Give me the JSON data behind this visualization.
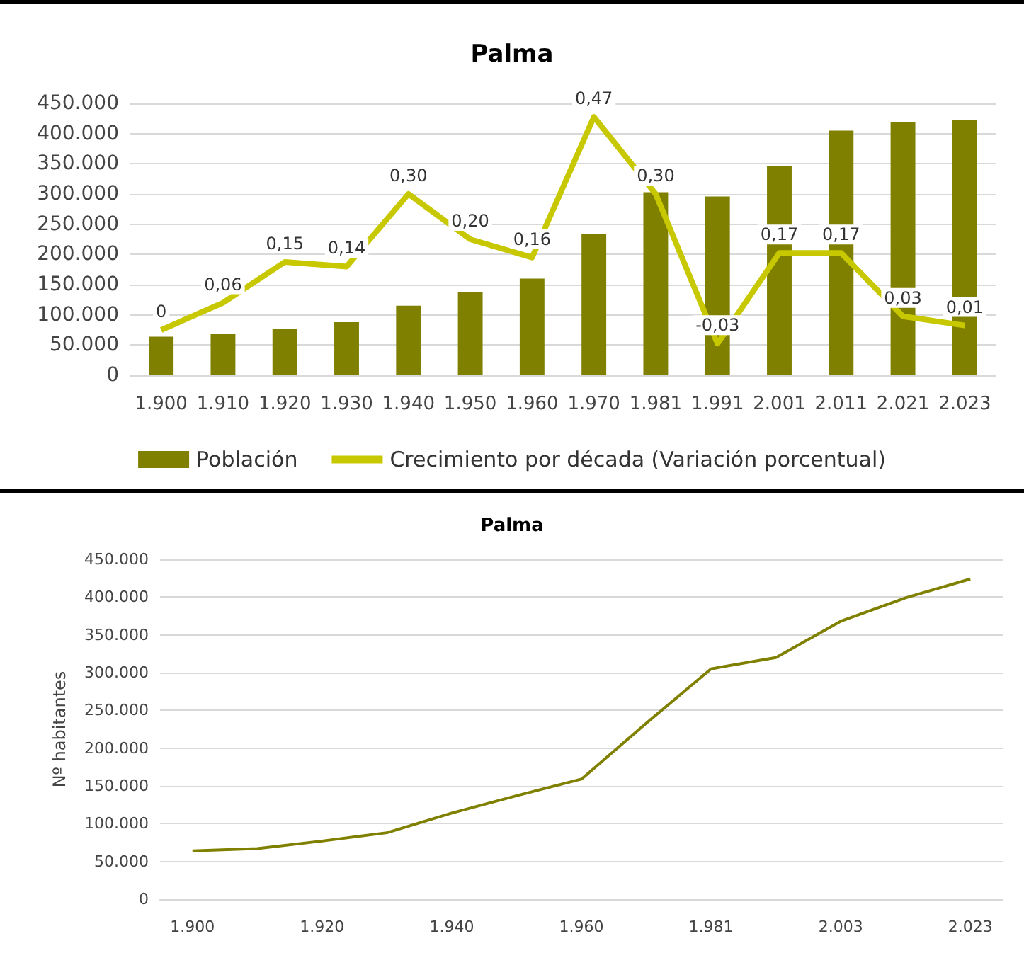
{
  "chart_data": [
    {
      "type": "bar",
      "title": "Palma",
      "categories": [
        "1.900",
        "1.910",
        "1.920",
        "1.930",
        "1.940",
        "1.950",
        "1.960",
        "1.970",
        "1.981",
        "1.991",
        "2.001",
        "2.011",
        "2.021",
        "2.023"
      ],
      "series": [
        {
          "name": "Población",
          "color": "#808000",
          "values": [
            64000,
            68000,
            77000,
            88000,
            115000,
            138000,
            160000,
            234000,
            303000,
            296000,
            347000,
            405000,
            419000,
            423000
          ]
        },
        {
          "name": "Crecimiento por década (Variación porcentual)",
          "type": "line",
          "axis": "y2",
          "color": "#c8c800",
          "values": [
            0,
            0.06,
            0.15,
            0.14,
            0.3,
            0.2,
            0.16,
            0.47,
            0.3,
            -0.03,
            0.17,
            0.17,
            0.03,
            0.01
          ],
          "value_labels": [
            "0",
            "0,06",
            "0,15",
            "0,14",
            "0,30",
            "0,20",
            "0,16",
            "0,47",
            "0,30",
            "-0,03",
            "0,17",
            "0,17",
            "0,03",
            "0,01"
          ]
        }
      ],
      "ylim": [
        0,
        450000
      ],
      "yticks": [
        0,
        {
          "value": 50000,
          "label": "50.000"
        },
        {
          "value": 100000,
          "label": "100.000"
        },
        {
          "value": 150000,
          "label": "150.000"
        },
        {
          "value": 200000,
          "label": "200.000"
        },
        {
          "value": 250000,
          "label": "250.000"
        },
        {
          "value": 300000,
          "label": "300.000"
        },
        {
          "value": 350000,
          "label": "350.000"
        },
        {
          "value": 400000,
          "label": "400.000"
        },
        {
          "value": 450000,
          "label": "450.000"
        }
      ],
      "y2lim": [
        -0.1,
        0.5
      ],
      "grid": "y",
      "legend": "bottom"
    },
    {
      "type": "line",
      "title": "Palma",
      "ylabel": "Nº habitantes",
      "categories": [
        "1.900",
        null,
        "1.920",
        null,
        "1.940",
        null,
        "1.960",
        null,
        "1.981",
        null,
        "2.003",
        null,
        "2.023"
      ],
      "series": [
        {
          "color": "#808000",
          "values": [
            64000,
            67000,
            77000,
            88000,
            114000,
            137000,
            159000,
            233000,
            305000,
            320000,
            368000,
            399000,
            424000
          ]
        }
      ],
      "ylim": [
        0,
        450000
      ],
      "yticks": [
        0,
        {
          "value": 50000,
          "label": "50.000"
        },
        {
          "value": 100000,
          "label": "100.000"
        },
        {
          "value": 150000,
          "label": "150.000"
        },
        {
          "value": 200000,
          "label": "200.000"
        },
        {
          "value": 250000,
          "label": "250.000"
        },
        {
          "value": 300000,
          "label": "300.000"
        },
        {
          "value": 350000,
          "label": "350.000"
        },
        {
          "value": 400000,
          "label": "400.000"
        },
        {
          "value": 450000,
          "label": "450.000"
        }
      ],
      "grid": "y",
      "marker": "none"
    }
  ]
}
